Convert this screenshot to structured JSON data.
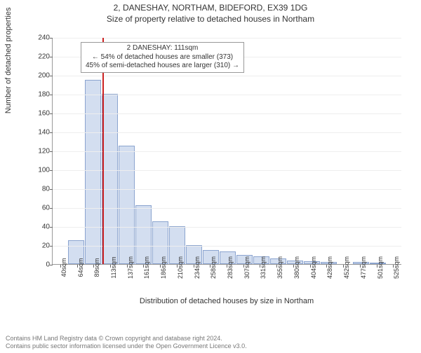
{
  "title": "2, DANESHAY, NORTHAM, BIDEFORD, EX39 1DG",
  "subtitle": "Size of property relative to detached houses in Northam",
  "ylabel": "Number of detached properties",
  "xlabel": "Distribution of detached houses by size in Northam",
  "footer_line1": "Contains HM Land Registry data © Crown copyright and database right 2024.",
  "footer_line2": "Contains public sector information licensed under the Open Government Licence v3.0.",
  "annotation": {
    "line1": "2 DANESHAY: 111sqm",
    "line2": "← 54% of detached houses are smaller (373)",
    "line3": "45% of semi-detached houses are larger (310) →"
  },
  "chart": {
    "type": "histogram",
    "ylim": [
      0,
      240
    ],
    "ytick_step": 20,
    "xtick_labels": [
      "40sqm",
      "64sqm",
      "89sqm",
      "113sqm",
      "137sqm",
      "161sqm",
      "186sqm",
      "210sqm",
      "234sqm",
      "258sqm",
      "283sqm",
      "307sqm",
      "331sqm",
      "355sqm",
      "380sqm",
      "404sqm",
      "428sqm",
      "452sqm",
      "477sqm",
      "501sqm",
      "525sqm"
    ],
    "values": [
      0,
      25,
      195,
      180,
      125,
      62,
      45,
      40,
      20,
      15,
      13,
      10,
      8,
      6,
      4,
      3,
      2,
      0,
      2,
      1,
      0
    ],
    "bar_fill": "#d3def0",
    "bar_border": "#8ba4cf",
    "grid_color": "#eeeeee",
    "axis_color": "#999999",
    "marker_color": "#cc2222",
    "marker_bin_index": 3,
    "marker_fraction_in_bin": 0.0,
    "background_color": "#ffffff",
    "text_color": "#333333",
    "title_fontsize": 12,
    "label_fontsize": 11,
    "tick_fontsize": 10
  }
}
